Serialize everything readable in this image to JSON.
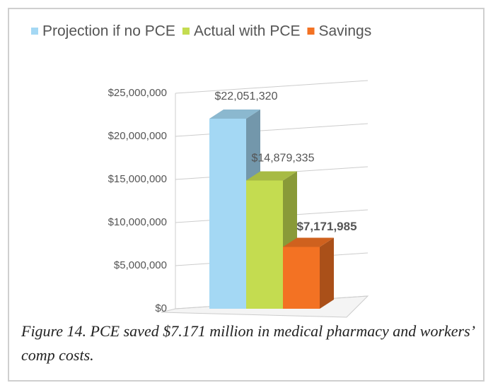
{
  "chart_data": {
    "type": "bar",
    "categories": [
      null
    ],
    "series": [
      {
        "name": "Projection if no PCE",
        "color": "#a4d8f4",
        "values": [
          22051320
        ],
        "value_labels": [
          "$22,051,320"
        ]
      },
      {
        "name": "Actual with PCE",
        "color": "#c4dc50",
        "values": [
          14879335
        ],
        "value_labels": [
          "$14,879,335"
        ]
      },
      {
        "name": "Savings",
        "color": "#f37223",
        "values": [
          7171985
        ],
        "value_labels": [
          "$7,171,985"
        ]
      }
    ],
    "ylim": [
      0,
      25000000
    ],
    "yticks": [
      {
        "value": 0,
        "label": "$0"
      },
      {
        "value": 5000000,
        "label": "$5,000,000"
      },
      {
        "value": 10000000,
        "label": "$10,000,000"
      },
      {
        "value": 15000000,
        "label": "$15,000,000"
      },
      {
        "value": 20000000,
        "label": "$20,000,000"
      },
      {
        "value": 25000000,
        "label": "$25,000,000"
      }
    ],
    "grid": true,
    "legend": "top",
    "caption": "Figure 14. PCE saved $7.171 million in medical pharmacy and workers’ comp costs."
  }
}
